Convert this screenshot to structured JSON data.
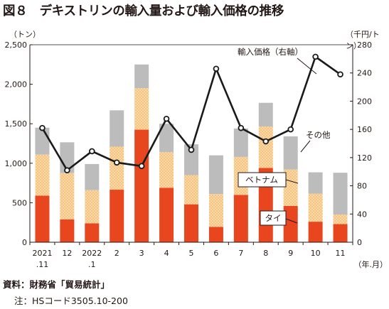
{
  "title": "図８　デキストリンの輸入量および輸入価格の推移",
  "unit_left": "（トン）",
  "unit_right": "（千円/トン）",
  "x_unit": "（年.月）",
  "source": "資料：財務省「貿易統計」",
  "note": "注：HSコード3505.10-200",
  "colors": {
    "vietnam": "#e8461e",
    "thailand": "#f9d9a6",
    "thailand_dots": "#f3a24a",
    "others": "#bcbcbc",
    "line": "#1a1a1a"
  },
  "chart_data": {
    "type": "bar",
    "stacked": true,
    "categories": [
      [
        "2021",
        ".11"
      ],
      [
        "12"
      ],
      [
        "2022",
        ".1"
      ],
      [
        "2"
      ],
      [
        "3"
      ],
      [
        "4"
      ],
      [
        "5"
      ],
      [
        "6"
      ],
      [
        "7"
      ],
      [
        "8"
      ],
      [
        "9"
      ],
      [
        "10"
      ],
      [
        "11"
      ]
    ],
    "series": [
      {
        "name": "ベトナム",
        "key": "vietnam",
        "values": [
          590,
          290,
          240,
          665,
          1425,
          690,
          480,
          195,
          600,
          940,
          460,
          260,
          230
        ]
      },
      {
        "name": "タイ",
        "key": "thailand",
        "values": [
          520,
          585,
          420,
          545,
          525,
          450,
          370,
          415,
          480,
          525,
          460,
          355,
          120
        ]
      },
      {
        "name": "その他",
        "key": "others",
        "values": [
          340,
          390,
          330,
          460,
          300,
          360,
          390,
          490,
          360,
          300,
          420,
          270,
          530
        ]
      }
    ],
    "line_series": {
      "name": "輸入価格（右軸）",
      "axis": "right",
      "values": [
        162,
        102,
        129,
        113,
        108,
        175,
        131,
        246,
        162,
        143,
        160,
        263,
        238
      ]
    },
    "ylim_left": [
      0,
      2500
    ],
    "yticks_left": [
      "0",
      "500",
      "1,000",
      "1,500",
      "2,000",
      "2,500"
    ],
    "ylim_right": [
      0,
      280
    ],
    "yticks_right": [
      "0",
      "40",
      "80",
      "120",
      "160",
      "200",
      "240",
      "280"
    ],
    "grid": false
  }
}
